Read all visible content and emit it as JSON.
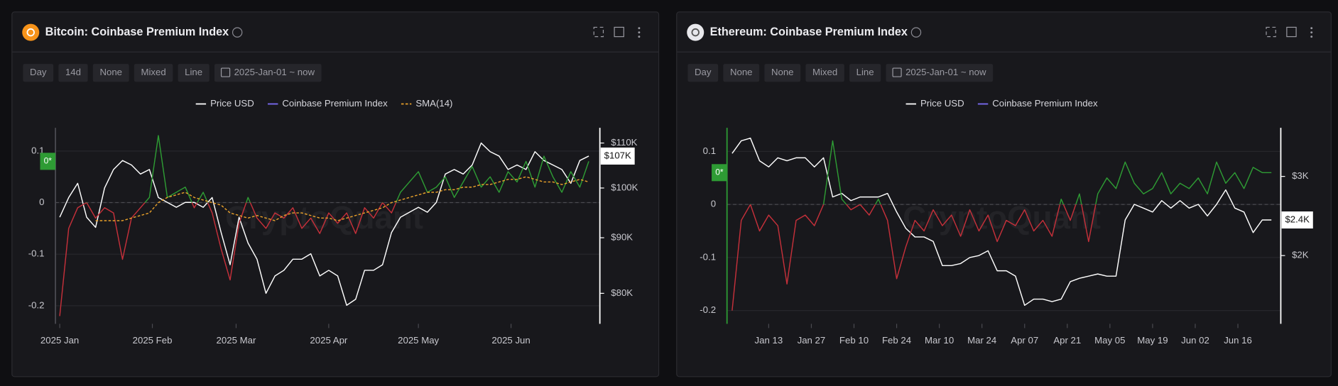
{
  "chart_data": [
    {
      "type": "line",
      "title": "Bitcoin: Coinbase Premium Index",
      "buttons": [
        "Day",
        "14d",
        "None",
        "Mixed",
        "Line"
      ],
      "date_range": "2025-Jan-01 ~ now",
      "watermark": "CryptoQuant",
      "xlim": [
        0,
        59
      ],
      "xticks": [
        {
          "value": 0,
          "label": "2025 Jan"
        },
        {
          "value": 10.33,
          "label": "2025 Feb"
        },
        {
          "value": 19.67,
          "label": "2025 Mar"
        },
        {
          "value": 30,
          "label": "2025 Apr"
        },
        {
          "value": 40,
          "label": "2025 May"
        },
        {
          "value": 50.33,
          "label": "2025 Jun"
        }
      ],
      "ylim": [
        -0.235,
        0.145
      ],
      "yticks": [
        0.1,
        0,
        -0.1,
        -0.2
      ],
      "y2lim": [
        75000,
        113600
      ],
      "y2log": true,
      "y2ticks": [
        {
          "value": 110000,
          "label": "$110K"
        },
        {
          "value": 100000,
          "label": "$100K"
        },
        {
          "value": 90000,
          "label": "$90K"
        },
        {
          "value": 80000,
          "label": "$80K"
        }
      ],
      "price_tag": {
        "value": 107000,
        "label": "$107K"
      },
      "premium_tag": "0*",
      "grid": true,
      "series": [
        {
          "name": "Price USD",
          "color": "#ffffff",
          "axis": "y2",
          "values": [
            94000,
            98000,
            101000,
            94000,
            92000,
            100000,
            104000,
            106000,
            105000,
            103000,
            104000,
            98000,
            97000,
            96000,
            97000,
            97000,
            96000,
            98000,
            91000,
            85000,
            94000,
            89000,
            86000,
            80000,
            83000,
            84000,
            86000,
            86000,
            87000,
            83000,
            84000,
            83000,
            78000,
            79000,
            84000,
            84000,
            85000,
            91000,
            94000,
            95000,
            96000,
            95000,
            97000,
            103000,
            104000,
            103000,
            105000,
            110000,
            108000,
            107000,
            104000,
            105000,
            104000,
            108000,
            106000,
            105000,
            104000,
            101000,
            106000,
            107000
          ]
        },
        {
          "name": "Coinbase Premium Index",
          "color": "#7b6cf6",
          "positive_color": "#2e9b34",
          "negative_color": "#c5303a",
          "values": [
            -0.22,
            -0.05,
            -0.01,
            0.0,
            -0.03,
            -0.01,
            -0.02,
            -0.11,
            -0.03,
            -0.01,
            0.01,
            0.13,
            0.01,
            0.02,
            0.03,
            -0.01,
            0.02,
            -0.02,
            -0.09,
            -0.15,
            -0.04,
            0.01,
            -0.03,
            -0.05,
            -0.02,
            -0.03,
            -0.01,
            -0.05,
            -0.03,
            -0.06,
            -0.02,
            -0.04,
            -0.02,
            -0.06,
            -0.01,
            -0.03,
            0.0,
            -0.02,
            0.02,
            0.04,
            0.06,
            0.02,
            0.03,
            0.05,
            0.01,
            0.04,
            0.07,
            0.03,
            0.05,
            0.02,
            0.06,
            0.04,
            0.08,
            0.03,
            0.09,
            0.05,
            0.02,
            0.06,
            0.03,
            0.08
          ]
        },
        {
          "name": "SMA(14)",
          "color": "#e8a02a",
          "dashed": true,
          "values": [
            null,
            null,
            null,
            null,
            -0.035,
            -0.035,
            -0.035,
            -0.035,
            -0.03,
            -0.025,
            -0.02,
            0.0,
            0.01,
            0.015,
            0.02,
            0.01,
            0.005,
            0.0,
            -0.005,
            -0.02,
            -0.025,
            -0.03,
            -0.025,
            -0.03,
            -0.035,
            -0.025,
            -0.02,
            -0.02,
            -0.025,
            -0.03,
            -0.03,
            -0.035,
            -0.03,
            -0.025,
            -0.02,
            -0.015,
            -0.01,
            0.0,
            0.005,
            0.01,
            0.015,
            0.02,
            0.02,
            0.025,
            0.025,
            0.03,
            0.03,
            0.035,
            0.035,
            0.04,
            0.045,
            0.045,
            0.05,
            0.045,
            0.04,
            0.04,
            0.035,
            0.04,
            0.045,
            0.04
          ]
        }
      ]
    },
    {
      "type": "line",
      "title": "Ethereum: Coinbase Premium Index",
      "buttons": [
        "Day",
        "None",
        "None",
        "Mixed",
        "Line"
      ],
      "date_range": "2025-Jan-01 ~ now",
      "watermark": "CryptoQuant",
      "xlim": [
        0,
        59
      ],
      "xticks": [
        {
          "value": 4,
          "label": "Jan 13"
        },
        {
          "value": 8.667,
          "label": "Jan 27"
        },
        {
          "value": 13.333,
          "label": "Feb 10"
        },
        {
          "value": 18,
          "label": "Feb 24"
        },
        {
          "value": 22.667,
          "label": "Mar 10"
        },
        {
          "value": 27.333,
          "label": "Mar 24"
        },
        {
          "value": 32,
          "label": "Apr 07"
        },
        {
          "value": 36.667,
          "label": "Apr 21"
        },
        {
          "value": 41.333,
          "label": "May 05"
        },
        {
          "value": 46,
          "label": "May 19"
        },
        {
          "value": 50.667,
          "label": "Jun 02"
        },
        {
          "value": 55.333,
          "label": "Jun 16"
        }
      ],
      "ylim": [
        -0.225,
        0.1445
      ],
      "yticks": [
        0.1,
        0,
        -0.1,
        -0.2
      ],
      "y2lim": [
        1410,
        3848
      ],
      "y2log": true,
      "y2ticks": [
        {
          "value": 3000,
          "label": "$3K"
        },
        {
          "value": 2000,
          "label": "$2K"
        }
      ],
      "price_tag": {
        "value": 2400,
        "label": "$2.4K"
      },
      "premium_tag": "0*",
      "grid": true,
      "series": [
        {
          "name": "Price USD",
          "color": "#ffffff",
          "axis": "y2",
          "values": [
            3375,
            3600,
            3650,
            3250,
            3150,
            3300,
            3250,
            3300,
            3300,
            3150,
            3300,
            2700,
            2750,
            2650,
            2700,
            2700,
            2700,
            2750,
            2500,
            2300,
            2200,
            2200,
            2150,
            1900,
            1900,
            1920,
            1980,
            2000,
            2050,
            1850,
            1850,
            1800,
            1550,
            1600,
            1600,
            1580,
            1600,
            1750,
            1780,
            1800,
            1820,
            1800,
            1800,
            2400,
            2600,
            2550,
            2500,
            2650,
            2550,
            2650,
            2550,
            2600,
            2450,
            2600,
            2800,
            2550,
            2500,
            2250,
            2400,
            2400
          ]
        },
        {
          "name": "Coinbase Premium Index",
          "color": "#7b6cf6",
          "positive_color": "#2e9b34",
          "negative_color": "#c5303a",
          "values": [
            -0.2,
            -0.03,
            0.0,
            -0.05,
            -0.02,
            -0.04,
            -0.15,
            -0.03,
            -0.02,
            -0.04,
            0.0,
            0.12,
            0.01,
            -0.01,
            0.0,
            -0.02,
            0.01,
            -0.03,
            -0.14,
            -0.08,
            -0.03,
            -0.05,
            -0.01,
            -0.04,
            -0.02,
            -0.06,
            -0.01,
            -0.05,
            -0.02,
            -0.07,
            -0.03,
            -0.04,
            -0.01,
            -0.05,
            -0.03,
            -0.06,
            0.01,
            -0.03,
            0.02,
            -0.07,
            0.02,
            0.05,
            0.03,
            0.08,
            0.04,
            0.02,
            0.03,
            0.06,
            0.02,
            0.04,
            0.03,
            0.05,
            0.02,
            0.08,
            0.04,
            0.06,
            0.03,
            0.07,
            0.06,
            0.06
          ]
        }
      ]
    }
  ]
}
